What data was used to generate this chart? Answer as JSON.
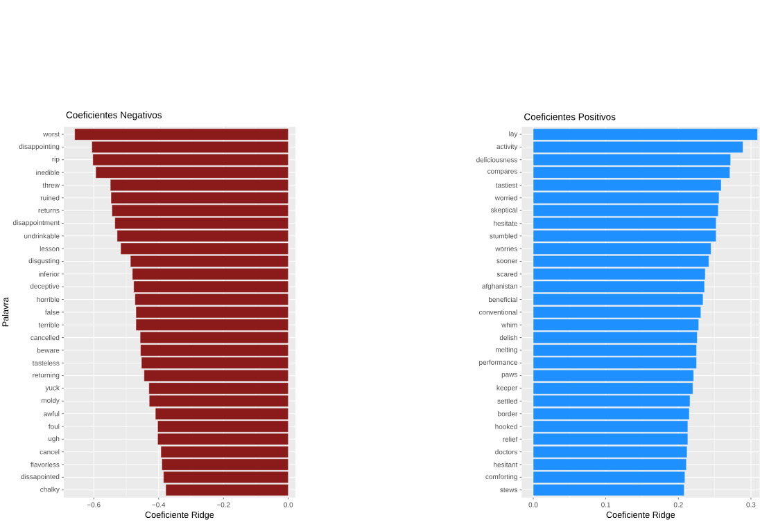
{
  "chart_data": [
    {
      "type": "bar",
      "orientation": "horizontal",
      "title": "Coeficientes Negativos",
      "xlabel": "Coeficiente Ridge",
      "ylabel": "Palavra",
      "color": "#8b1a1a",
      "grid": true,
      "categories": [
        "worst",
        "disappointing",
        "rip",
        "inedible",
        "threw",
        "ruined",
        "returns",
        "disappointment",
        "undrinkable",
        "lesson",
        "disgusting",
        "inferior",
        "deceptive",
        "horrible",
        "false",
        "terrible",
        "cancelled",
        "beware",
        "tasteless",
        "returning",
        "yuck",
        "moldy",
        "awful",
        "foul",
        "ugh",
        "cancel",
        "flavorless",
        "dissapointed",
        "chalky"
      ],
      "values": [
        -0.659,
        -0.606,
        -0.603,
        -0.594,
        -0.549,
        -0.547,
        -0.544,
        -0.535,
        -0.528,
        -0.517,
        -0.487,
        -0.481,
        -0.477,
        -0.473,
        -0.47,
        -0.47,
        -0.457,
        -0.456,
        -0.453,
        -0.445,
        -0.43,
        -0.429,
        -0.41,
        -0.403,
        -0.403,
        -0.393,
        -0.39,
        -0.385,
        -0.378
      ],
      "xlim": [
        -0.693,
        0.022
      ],
      "xticks": [
        {
          "value": -0.6,
          "label": "−0.6"
        },
        {
          "value": -0.4,
          "label": "−0.4"
        },
        {
          "value": -0.2,
          "label": "−0.2"
        },
        {
          "value": 0.0,
          "label": "0.0"
        }
      ]
    },
    {
      "type": "bar",
      "orientation": "horizontal",
      "title": "Coeficientes Positivos",
      "xlabel": "Coeficiente Ridge",
      "color": "#1e90ff",
      "grid": true,
      "categories": [
        "lay",
        "activity",
        "deliciousness",
        "compares",
        "tastiest",
        "worried",
        "skeptical",
        "hesitate",
        "stumbled",
        "worries",
        "sooner",
        "scared",
        "afghanistan",
        "beneficial",
        "conventional",
        "whim",
        "delish",
        "melting",
        "performance",
        "paws",
        "keeper",
        "settled",
        "border",
        "hooked",
        "relief",
        "doctors",
        "hesitant",
        "comforting",
        "stews"
      ],
      "values": [
        0.309,
        0.289,
        0.272,
        0.271,
        0.259,
        0.256,
        0.255,
        0.252,
        0.252,
        0.245,
        0.242,
        0.237,
        0.236,
        0.234,
        0.231,
        0.228,
        0.226,
        0.225,
        0.225,
        0.221,
        0.22,
        0.216,
        0.215,
        0.213,
        0.213,
        0.212,
        0.211,
        0.209,
        0.208
      ],
      "xlim": [
        -0.016,
        0.312
      ],
      "xticks": [
        {
          "value": 0.0,
          "label": "0.0"
        },
        {
          "value": 0.1,
          "label": "0.1"
        },
        {
          "value": 0.2,
          "label": "0.2"
        },
        {
          "value": 0.3,
          "label": "0.3"
        }
      ]
    }
  ]
}
